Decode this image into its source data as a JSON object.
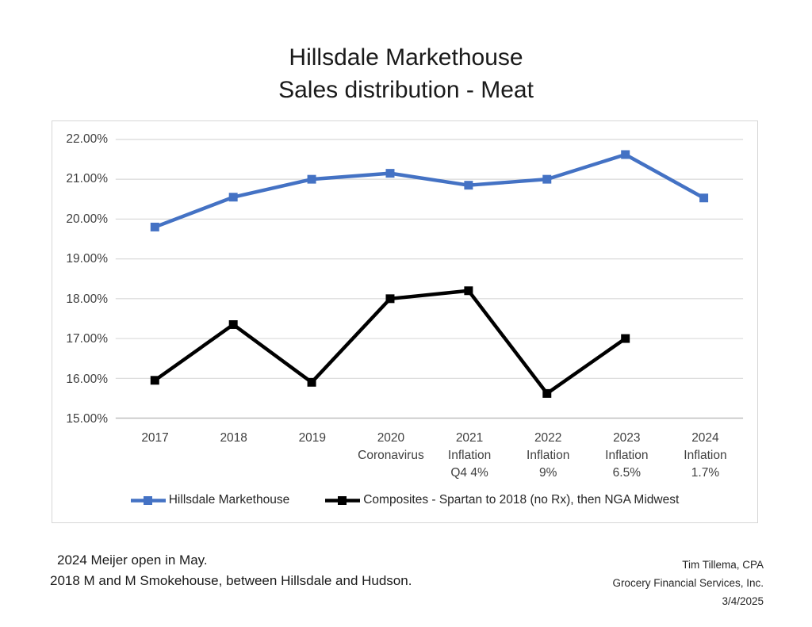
{
  "title": {
    "line1": "Hillsdale Markethouse",
    "line2": "Sales distribution - Meat"
  },
  "chart_data": {
    "type": "line",
    "categories": [
      [
        "2017"
      ],
      [
        "2018"
      ],
      [
        "2019"
      ],
      [
        "2020",
        "Coronavirus"
      ],
      [
        "2021",
        "Inflation",
        "Q4 4%"
      ],
      [
        "2022",
        "Inflation",
        "9%"
      ],
      [
        "2023",
        "Inflation",
        "6.5%"
      ],
      [
        "2024",
        "Inflation",
        "1.7%"
      ]
    ],
    "y_axis": {
      "min": 15,
      "max": 22,
      "step": 1,
      "unit": "%"
    },
    "y_tick_labels": [
      "22.00%",
      "21.00%",
      "20.00%",
      "19.00%",
      "18.00%",
      "17.00%",
      "16.00%",
      "15.00%"
    ],
    "series": [
      {
        "name": "Hillsdale Markethouse",
        "color": "#4472C4",
        "values": [
          19.8,
          20.55,
          21.0,
          21.15,
          20.85,
          21.0,
          21.62,
          20.53
        ]
      },
      {
        "name": "Composites - Spartan to 2018 (no Rx), then NGA Midwest",
        "color": "#000000",
        "values": [
          15.95,
          17.35,
          15.9,
          18.0,
          18.2,
          15.62,
          17.0,
          null
        ]
      }
    ],
    "grid": true,
    "legend_position": "bottom",
    "marker": "square"
  },
  "footnotes": {
    "line1": "2024 Meijer open in May.",
    "line2": "2018 M and M Smokehouse, between Hillsdale and Hudson."
  },
  "attribution": {
    "line1": "Tim Tillema, CPA",
    "line2": "Grocery Financial Services, Inc.",
    "line3": "3/4/2025"
  },
  "colors": {
    "series_1": "#4472C4",
    "series_2": "#000000",
    "gridline": "#D9D9D9",
    "axis_line": "#BFBFBF",
    "chart_border": "#D6D6D6",
    "title_text": "#1A1A1A",
    "tick_text": "#404040"
  }
}
